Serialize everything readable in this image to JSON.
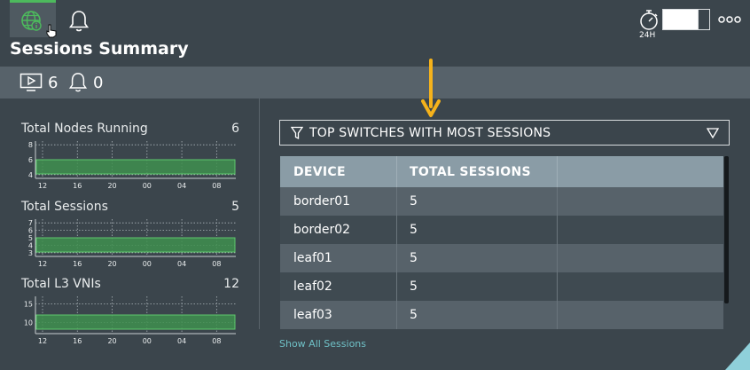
{
  "header": {
    "title": "Sessions Summary",
    "time_label": "24H",
    "icons": [
      "globe-info-icon",
      "bell-icon",
      "stopwatch-icon",
      "more-icon"
    ]
  },
  "stats": {
    "sessions": {
      "icon": "monitor-play-icon",
      "value": "6"
    },
    "alarms": {
      "icon": "bell-icon",
      "value": "0"
    }
  },
  "metrics": [
    {
      "label": "Total Nodes Running",
      "value": "6",
      "chart_data": {
        "type": "area",
        "x_ticks": [
          "12",
          "16",
          "20",
          "00",
          "04",
          "08"
        ],
        "y_ticks": [
          "8",
          "6",
          "4"
        ],
        "ylim": [
          3.5,
          8.5
        ],
        "series": [
          {
            "values": [
              6,
              6,
              6,
              6,
              6,
              6,
              6
            ]
          }
        ]
      }
    },
    {
      "label": "Total Sessions",
      "value": "5",
      "chart_data": {
        "type": "area",
        "x_ticks": [
          "12",
          "16",
          "20",
          "00",
          "04",
          "08"
        ],
        "y_ticks": [
          "7",
          "6",
          "5",
          "4",
          "3"
        ],
        "ylim": [
          2.5,
          7.5
        ],
        "series": [
          {
            "values": [
              5,
              5,
              5,
              5,
              5,
              5,
              5
            ]
          }
        ]
      }
    },
    {
      "label": "Total L3 VNIs",
      "value": "12",
      "chart_data": {
        "type": "area",
        "x_ticks": [
          "12",
          "16",
          "20",
          "00",
          "04",
          "08"
        ],
        "y_ticks": [
          "15",
          "10"
        ],
        "ylim": [
          7,
          17
        ],
        "series": [
          {
            "values": [
              12,
              12,
              12,
              12,
              12,
              12,
              12
            ]
          }
        ]
      }
    }
  ],
  "filter": {
    "label": "TOP SWITCHES WITH MOST SESSIONS"
  },
  "table": {
    "columns": [
      "DEVICE",
      "TOTAL SESSIONS"
    ],
    "rows": [
      [
        "border01",
        "5"
      ],
      [
        "border02",
        "5"
      ],
      [
        "leaf01",
        "5"
      ],
      [
        "leaf02",
        "5"
      ],
      [
        "leaf03",
        "5"
      ]
    ]
  },
  "footer": {
    "show_all": "Show All Sessions"
  },
  "colors": {
    "background": "#3b454c",
    "stat_bar": "#57626a",
    "accent_green": "#4dba5d",
    "chart_fill": "#3f8f4f",
    "link": "#6fc0c6",
    "arrow": "#f5b21b",
    "table_header": "#8a9ca6"
  }
}
